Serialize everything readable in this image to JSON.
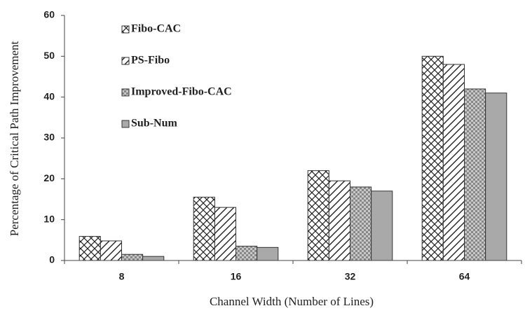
{
  "chart_data": {
    "type": "bar",
    "x_label": "Channel Width (Number of Lines)",
    "y_label": "Percentage of Critical Path Improvement",
    "categories": [
      "8",
      "16",
      "32",
      "64"
    ],
    "series": [
      {
        "name": "Fibo-CAC",
        "color": "#ffffff",
        "hatch": "cross",
        "values": [
          5.9,
          15.5,
          22,
          50
        ]
      },
      {
        "name": "PS-Fibo",
        "color": "#ffffff",
        "hatch": "diagonal",
        "values": [
          4.8,
          13,
          19.5,
          48
        ]
      },
      {
        "name": "Improved-Fibo-CAC",
        "color": "#c8c8c8",
        "hatch": "check",
        "values": [
          1.5,
          3.5,
          18,
          42
        ]
      },
      {
        "name": "Sub-Num",
        "color": "#a9a9a9",
        "hatch": "solid",
        "values": [
          1.0,
          3.2,
          17,
          41
        ]
      }
    ],
    "ylim": [
      0,
      60
    ],
    "yticks": [
      0,
      10,
      20,
      30,
      40,
      50,
      60
    ],
    "legend": "upper left"
  }
}
